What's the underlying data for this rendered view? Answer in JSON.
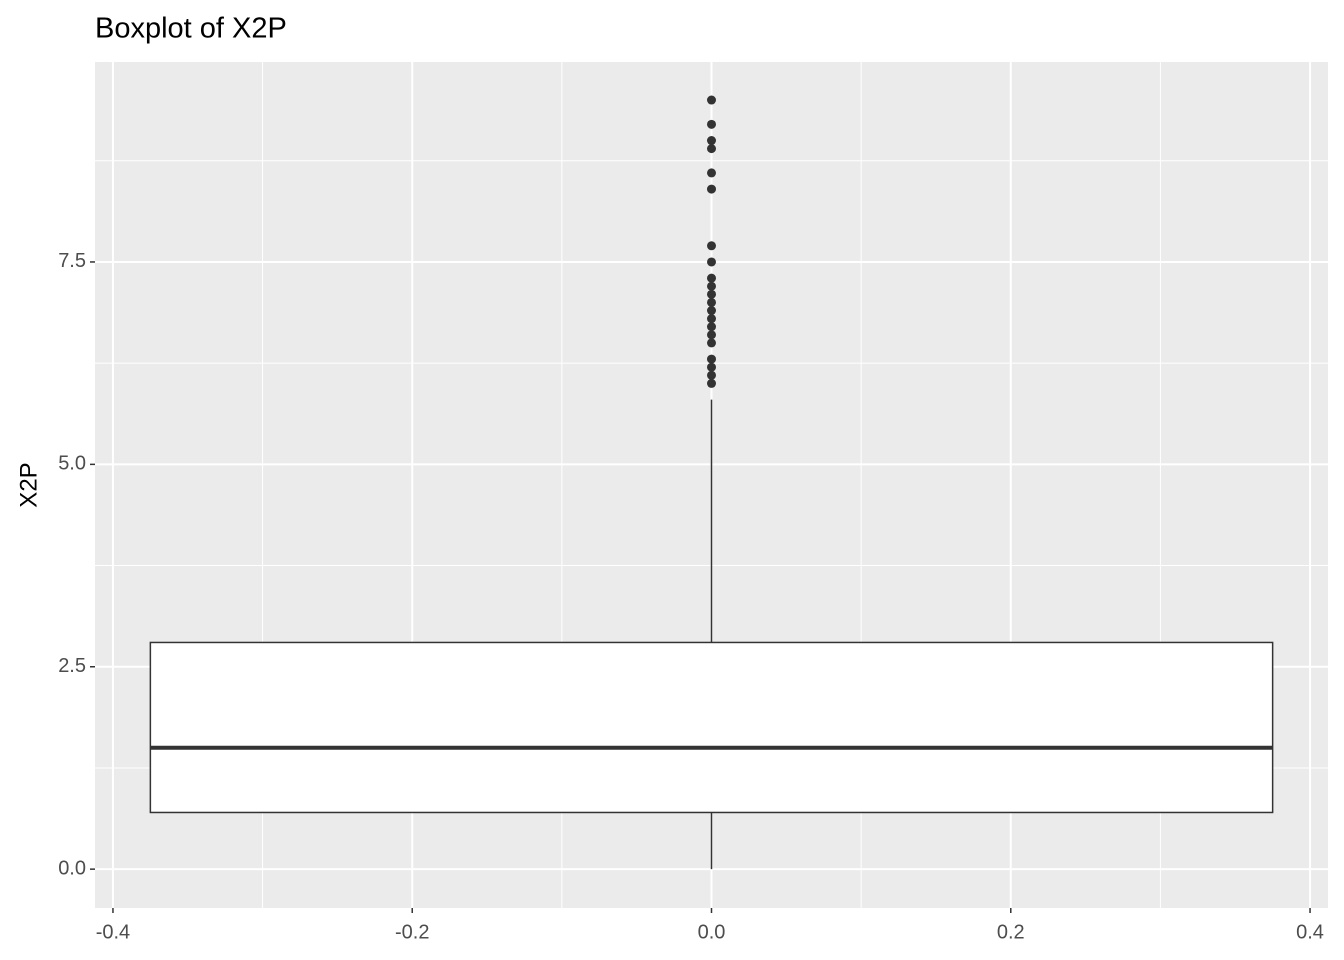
{
  "chart_data": {
    "type": "boxplot",
    "title": "Boxplot of X2P",
    "y_label": "X2P",
    "xlim": [
      -0.412,
      0.412
    ],
    "ylim": [
      -0.48,
      9.97
    ],
    "xticks": [
      -0.4,
      -0.2,
      {
        "value": 0,
        "label": "0.0"
      },
      0.2,
      0.4
    ],
    "yticks": [
      {
        "value": 0,
        "label": "0.0"
      },
      2.5,
      {
        "value": 5,
        "label": "5.0"
      },
      7.5
    ],
    "grid": true,
    "x": 0,
    "box_x": [
      -0.375,
      0.375
    ],
    "whisker_low": 0,
    "q1": 0.7,
    "median": 1.5,
    "q3": 2.8,
    "whisker_high": 5.8,
    "outliers": [
      9.5,
      9.2,
      9.0,
      8.9,
      8.6,
      8.4,
      7.7,
      7.5,
      7.3,
      7.2,
      7.1,
      7.0,
      6.9,
      6.8,
      6.7,
      6.6,
      6.5,
      6.3,
      6.2,
      6.1,
      6.0
    ],
    "color": "#333333",
    "box_fill": "#ffffff",
    "panel_color": "#ebebeb"
  }
}
